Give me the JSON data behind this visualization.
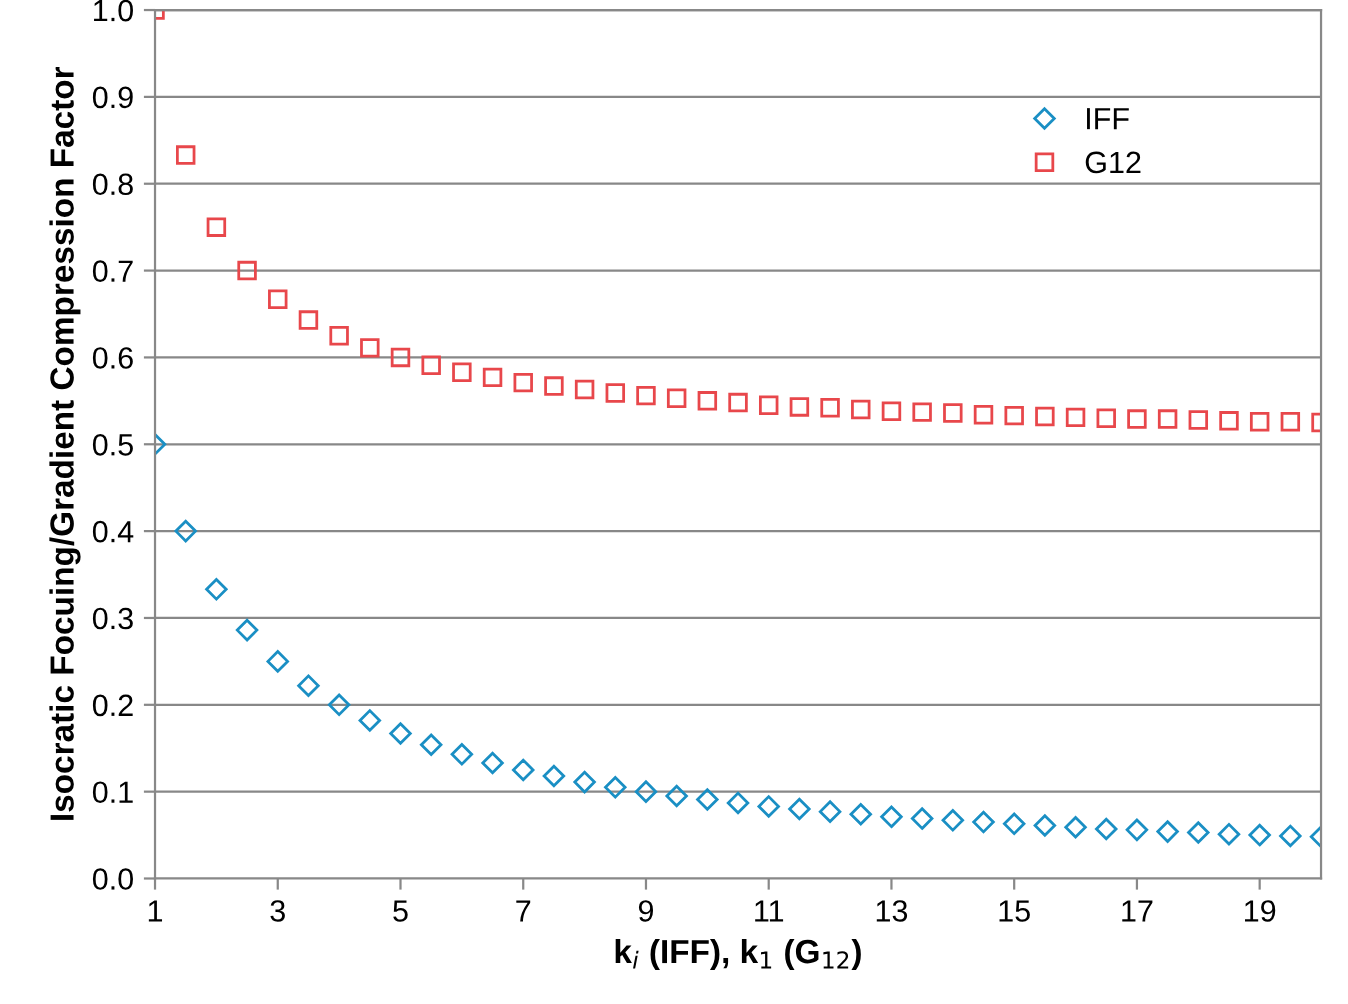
{
  "chart_data": {
    "type": "scatter",
    "xlabel": "k$_{i}$ (IFF), k$_{1}$ (G$_{12}$)",
    "ylabel": "Isocratic Focuing/Gradient Compression Factor",
    "xlim": [
      1,
      20
    ],
    "xticks": [
      1,
      3,
      5,
      7,
      9,
      11,
      13,
      15,
      17,
      19
    ],
    "ylim": [
      0,
      1
    ],
    "yticks": [
      {
        "value": 0,
        "label": "0.0"
      },
      0.1,
      0.2,
      0.3,
      0.4,
      0.5,
      0.6,
      0.7,
      0.8,
      0.9,
      {
        "value": 1,
        "label": "1.0"
      }
    ],
    "grid": "y",
    "legend": "top right",
    "x": [
      1,
      1.5,
      2,
      2.5,
      3,
      3.5,
      4,
      4.5,
      5,
      5.5,
      6,
      6.5,
      7,
      7.5,
      8,
      8.5,
      9,
      9.5,
      10,
      10.5,
      11,
      11.5,
      12,
      12.5,
      13,
      13.5,
      14,
      14.5,
      15,
      15.5,
      16,
      16.5,
      17,
      17.5,
      18,
      18.5,
      19,
      19.5,
      20
    ],
    "series": [
      {
        "name": "IFF",
        "color": "#1a8fc4",
        "marker": "diamond",
        "values": [
          0.5,
          0.4,
          0.333,
          0.286,
          0.25,
          0.222,
          0.2,
          0.182,
          0.167,
          0.154,
          0.143,
          0.133,
          0.125,
          0.118,
          0.111,
          0.105,
          0.1,
          0.095,
          0.091,
          0.087,
          0.083,
          0.08,
          0.077,
          0.074,
          0.071,
          0.069,
          0.067,
          0.065,
          0.063,
          0.061,
          0.059,
          0.057,
          0.056,
          0.054,
          0.053,
          0.051,
          0.05,
          0.049,
          0.048
        ]
      },
      {
        "name": "G12",
        "color": "#e8474b",
        "marker": "square",
        "values": [
          1.0,
          0.833,
          0.75,
          0.7,
          0.667,
          0.643,
          0.625,
          0.611,
          0.6,
          0.591,
          0.583,
          0.577,
          0.571,
          0.567,
          0.563,
          0.559,
          0.556,
          0.553,
          0.55,
          0.548,
          0.545,
          0.543,
          0.542,
          0.54,
          0.538,
          0.537,
          0.536,
          0.534,
          0.533,
          0.532,
          0.531,
          0.53,
          0.529,
          0.529,
          0.528,
          0.527,
          0.526,
          0.526,
          0.525
        ]
      }
    ]
  }
}
